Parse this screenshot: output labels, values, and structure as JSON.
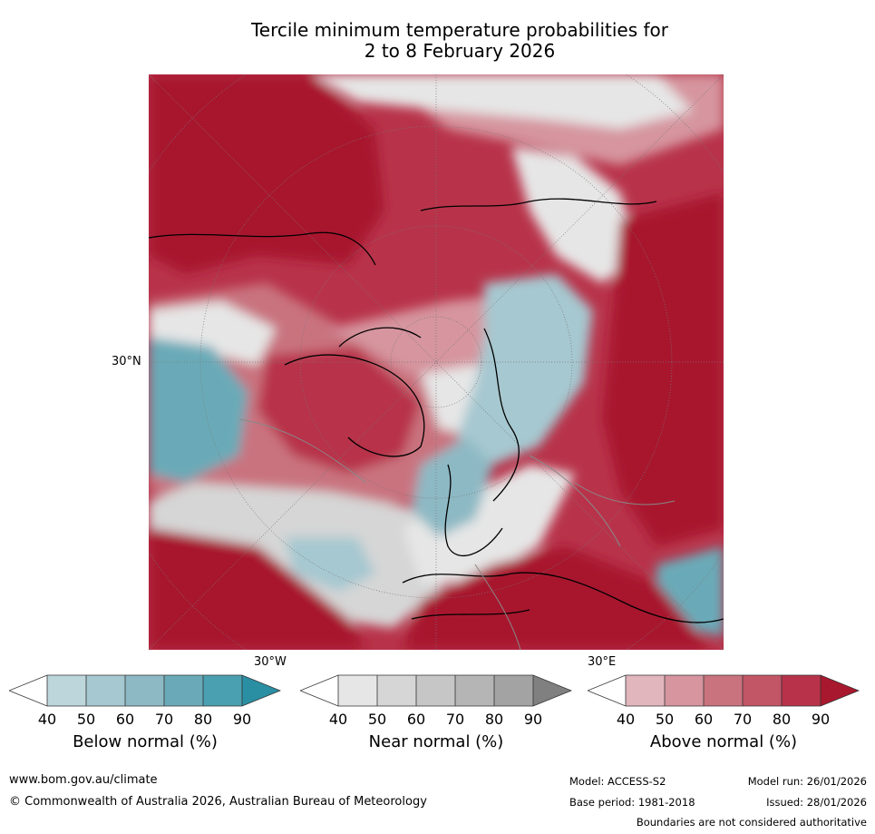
{
  "title_line1": "Tercile minimum temperature probabilities for",
  "title_line2": "2 to 8 February 2026",
  "map": {
    "lat_label": "30°N",
    "lon_labels": [
      "30°W",
      "30°E"
    ]
  },
  "colorbars": [
    {
      "label": "Below normal (%)",
      "ticks": [
        "40",
        "50",
        "60",
        "70",
        "80",
        "90"
      ],
      "colors": [
        "#ffffff",
        "#bdd6dc",
        "#a6c8d0",
        "#8db9c4",
        "#6aaab8",
        "#4aa0b0",
        "#2b8fa3"
      ]
    },
    {
      "label": "Near normal (%)",
      "ticks": [
        "40",
        "50",
        "60",
        "70",
        "80",
        "90"
      ],
      "colors": [
        "#ffffff",
        "#e6e6e6",
        "#d6d6d6",
        "#c6c6c6",
        "#b5b5b5",
        "#a3a3a3",
        "#808080"
      ]
    },
    {
      "label": "Above normal (%)",
      "ticks": [
        "40",
        "50",
        "60",
        "70",
        "80",
        "90"
      ],
      "colors": [
        "#ffffff",
        "#e2b6bd",
        "#d6959f",
        "#c9737f",
        "#c25566",
        "#b8334a",
        "#a8182e"
      ]
    }
  ],
  "footer": {
    "website": "www.bom.gov.au/climate",
    "copyright": "© Commonwealth of Australia 2026, Australian Bureau of Meteorology",
    "model": "Model: ACCESS-S2",
    "base_period": "Base period: 1981-2018",
    "model_run": "Model run: 26/01/2026",
    "issued": "Issued: 28/01/2026",
    "disclaimer": "Boundaries are not considered authoritative"
  }
}
